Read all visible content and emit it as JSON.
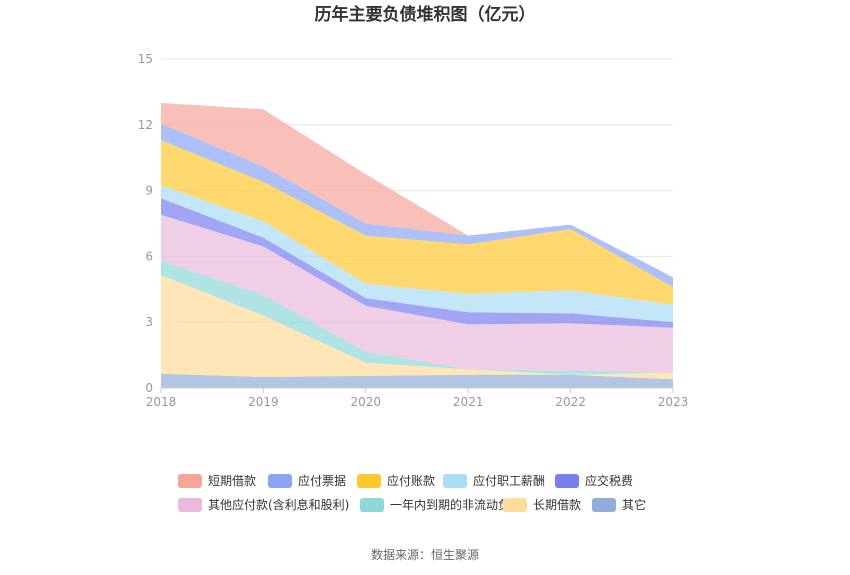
{
  "chart_data": {
    "type": "area",
    "stacked": true,
    "title": "历年主要负债堆积图（亿元）",
    "x": [
      "2018",
      "2019",
      "2020",
      "2021",
      "2022",
      "2023"
    ],
    "ylim": [
      0,
      15
    ],
    "yticks": [
      "0",
      "3",
      "6",
      "9",
      "12",
      "15"
    ],
    "grid": true,
    "legend_position": "bottom",
    "series": [
      {
        "name": "其它",
        "color": "#92acd9",
        "values": [
          0.65,
          0.5,
          0.55,
          0.6,
          0.6,
          0.4
        ]
      },
      {
        "name": "长期借款",
        "color": "#ffdc99",
        "values": [
          4.5,
          2.8,
          0.6,
          0.25,
          0.0,
          0.3
        ]
      },
      {
        "name": "一年内到期的非流动负债",
        "color": "#8ed8d8",
        "values": [
          0.65,
          0.95,
          0.5,
          0.0,
          0.2,
          0.0
        ]
      },
      {
        "name": "其他应付款(含利息和股利)",
        "color": "#eab9dc",
        "values": [
          2.1,
          2.2,
          2.1,
          2.05,
          2.15,
          2.05
        ]
      },
      {
        "name": "应交税费",
        "color": "#7a7ff0",
        "values": [
          0.75,
          0.4,
          0.35,
          0.55,
          0.45,
          0.25
        ]
      },
      {
        "name": "应付职工薪酬",
        "color": "#a9ddf5",
        "values": [
          0.6,
          0.75,
          0.65,
          0.85,
          1.05,
          0.8
        ]
      },
      {
        "name": "应付账款",
        "color": "#ffc832",
        "values": [
          2.05,
          1.8,
          2.2,
          2.25,
          2.8,
          0.8
        ]
      },
      {
        "name": "应付票据",
        "color": "#8aa6f5",
        "values": [
          0.75,
          0.7,
          0.55,
          0.4,
          0.2,
          0.45
        ]
      },
      {
        "name": "短期借款",
        "color": "#f7a59b",
        "values": [
          0.95,
          2.6,
          2.25,
          0.0,
          0.0,
          0.0
        ]
      }
    ],
    "legend": [
      {
        "name": "短期借款",
        "color": "#f7a59b"
      },
      {
        "name": "应付票据",
        "color": "#8aa6f5"
      },
      {
        "name": "应付账款",
        "color": "#ffc832"
      },
      {
        "name": "应付职工薪酬",
        "color": "#a9ddf5"
      },
      {
        "name": "应交税费",
        "color": "#7a7ff0"
      },
      {
        "name": "其他应付款(含利息和股利)",
        "color": "#eab9dc"
      },
      {
        "name": "一年内到期的非流动负债",
        "color": "#8ed8d8"
      },
      {
        "name": "长期借款",
        "color": "#ffdc99"
      },
      {
        "name": "其它",
        "color": "#92acd9"
      }
    ]
  },
  "source_text": "数据来源：恒生聚源"
}
